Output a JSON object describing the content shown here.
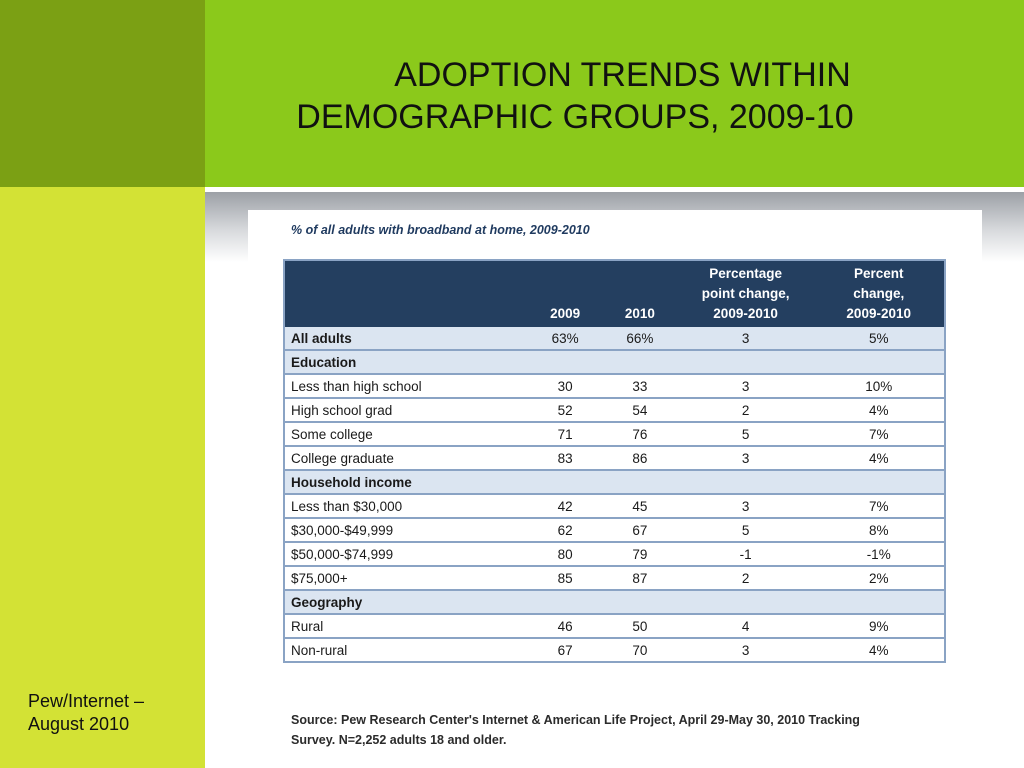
{
  "slide": {
    "title_line1": "ADOPTION TRENDS WITHIN",
    "title_line2": "DEMOGRAPHIC GROUPS, 2009-10",
    "footer_line1": "Pew/Internet –",
    "footer_line2": "August 2010"
  },
  "table": {
    "caption": "% of all adults with broadband at home, 2009-2010",
    "headers": [
      "",
      "2009",
      "2010",
      "Percentage point change, 2009-2010",
      "Percent change, 2009-2010"
    ],
    "header_lines": {
      "col3": [
        "Percentage",
        "point change,",
        "2009-2010"
      ],
      "col4": [
        "Percent",
        "change,",
        "2009-2010"
      ]
    },
    "rows": [
      {
        "kind": "band",
        "label": "All adults",
        "y2009": "63%",
        "y2010": "66%",
        "pt_change": "3",
        "pct_change": "5%"
      },
      {
        "kind": "section",
        "label": "Education"
      },
      {
        "kind": "plain",
        "label": "Less than high school",
        "y2009": "30",
        "y2010": "33",
        "pt_change": "3",
        "pct_change": "10%"
      },
      {
        "kind": "plain",
        "label": "High school grad",
        "y2009": "52",
        "y2010": "54",
        "pt_change": "2",
        "pct_change": "4%"
      },
      {
        "kind": "plain",
        "label": "Some college",
        "y2009": "71",
        "y2010": "76",
        "pt_change": "5",
        "pct_change": "7%"
      },
      {
        "kind": "plain",
        "label": "College graduate",
        "y2009": "83",
        "y2010": "86",
        "pt_change": "3",
        "pct_change": "4%"
      },
      {
        "kind": "section",
        "label": "Household income"
      },
      {
        "kind": "plain",
        "label": "Less than $30,000",
        "y2009": "42",
        "y2010": "45",
        "pt_change": "3",
        "pct_change": "7%"
      },
      {
        "kind": "plain",
        "label": "$30,000-$49,999",
        "y2009": "62",
        "y2010": "67",
        "pt_change": "5",
        "pct_change": "8%"
      },
      {
        "kind": "plain",
        "label": "$50,000-$74,999",
        "y2009": "80",
        "y2010": "79",
        "pt_change": "-1",
        "pct_change": "-1%"
      },
      {
        "kind": "plain",
        "label": "$75,000+",
        "y2009": "85",
        "y2010": "87",
        "pt_change": "2",
        "pct_change": "2%"
      },
      {
        "kind": "section",
        "label": "Geography"
      },
      {
        "kind": "plain",
        "label": "Rural",
        "y2009": "46",
        "y2010": "50",
        "pt_change": "4",
        "pct_change": "9%"
      },
      {
        "kind": "plain",
        "label": "Non-rural",
        "y2009": "67",
        "y2010": "70",
        "pt_change": "3",
        "pct_change": "4%"
      }
    ],
    "source_line1": "Source: Pew Research Center's Internet & American Life Project, April 29-May 30, 2010 Tracking",
    "source_line2": "Survey. N=2,252 adults 18 and older."
  },
  "colors": {
    "title_band": "#8bc91b",
    "left_top": "#7ba014",
    "left_bottom": "#d3e235",
    "table_header": "#243f60",
    "row_band": "#dbe5f1",
    "table_border": "#8aa3c4"
  }
}
